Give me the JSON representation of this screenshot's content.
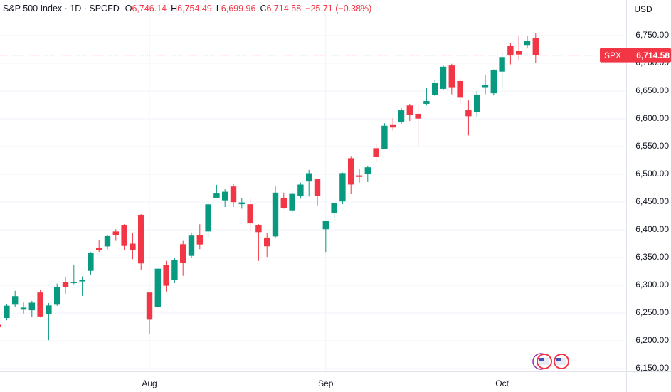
{
  "chart_data": {
    "type": "candlestick",
    "header": {
      "symbol": "S&P 500 Index · 1D · SPCFD",
      "ohlc": [
        {
          "label": "O",
          "value": "6,746.14"
        },
        {
          "label": "H",
          "value": "6,754.49"
        },
        {
          "label": "L",
          "value": "6,699.96"
        },
        {
          "label": "C",
          "value": "6,714.58"
        }
      ],
      "change": "−25.71 (−0.38%)"
    },
    "currency": "USD",
    "price_tag": {
      "symbol": "SPX",
      "label": "6,714.58"
    },
    "categories": [
      null,
      null,
      null,
      null,
      null,
      null,
      null,
      null,
      null,
      null,
      null,
      null,
      null,
      null,
      null,
      null,
      null,
      null,
      "Aug",
      null,
      null,
      null,
      null,
      null,
      null,
      null,
      null,
      null,
      null,
      null,
      null,
      null,
      null,
      null,
      null,
      null,
      null,
      null,
      null,
      "Sep",
      null,
      null,
      null,
      null,
      null,
      null,
      null,
      null,
      null,
      null,
      null,
      null,
      null,
      null,
      null,
      null,
      null,
      null,
      null,
      null,
      "Oct",
      null,
      null,
      null,
      null
    ],
    "series": {
      "up_color": "#089981",
      "down_color": "#f23645",
      "open": [
        6229,
        6241,
        6265,
        6256,
        6255,
        6287,
        6248,
        6265,
        6306,
        6304,
        6307,
        6326,
        6368,
        6370,
        6397,
        6409,
        6375,
        6427,
        6287,
        6261,
        6337,
        6309,
        6374,
        6353,
        6391,
        6397,
        6457,
        6453,
        6478,
        6446,
        6446,
        6409,
        6386,
        6388,
        6457,
        6435,
        6461,
        6487,
        6491,
        6401,
        6430,
        6451,
        6529,
        6498,
        6500,
        6547,
        6546,
        6590,
        6594,
        6624,
        6609,
        6627,
        6643,
        6654,
        6696,
        6668,
        6616,
        6612,
        6657,
        6646,
        6685,
        6731,
        6722,
        6733,
        6746.14
      ],
      "high": [
        6242,
        6266,
        6290,
        6269,
        6272,
        6292,
        6268,
        6303,
        6315,
        6336,
        6316,
        6360,
        6382,
        6390,
        6401,
        6410,
        6394,
        6428,
        6288,
        6330,
        6344,
        6349,
        6380,
        6395,
        6410,
        6447,
        6481,
        6473,
        6482,
        6457,
        6456,
        6410,
        6394,
        6478,
        6467,
        6469,
        6485,
        6508,
        6492,
        6416,
        6449,
        6503,
        6533,
        6509,
        6515,
        6554,
        6592,
        6601,
        6619,
        6627,
        6624,
        6656,
        6671,
        6697,
        6699,
        6673,
        6633,
        6650,
        6679,
        6689,
        6718,
        6736,
        6750,
        6749,
        6754.49
      ],
      "low": [
        6217,
        6237,
        6261,
        6249,
        6243,
        6242,
        6201,
        6263,
        6285,
        6302,
        6281,
        6318,
        6360,
        6365,
        6380,
        6364,
        6347,
        6327,
        6212,
        6260,
        6289,
        6304,
        6317,
        6350,
        6365,
        6385,
        6457,
        6441,
        6441,
        6438,
        6397,
        6344,
        6351,
        6385,
        6438,
        6430,
        6456,
        6460,
        6444,
        6360,
        6417,
        6446,
        6465,
        6485,
        6486,
        6522,
        6545,
        6579,
        6591,
        6596,
        6551,
        6624,
        6641,
        6652,
        6644,
        6627,
        6570,
        6603,
        6644,
        6642,
        6656,
        6698,
        6705,
        6727,
        6699.96
      ],
      "close": [
        6225.5,
        6263.3,
        6280.5,
        6259.8,
        6268.6,
        6243.8,
        6263.7,
        6297.4,
        6296.8,
        6305.6,
        6309.6,
        6358.9,
        6363.4,
        6388.6,
        6389.8,
        6370.9,
        6362.9,
        6339.4,
        6238.0,
        6329.9,
        6299.2,
        6345.1,
        6340.0,
        6389.5,
        6373.5,
        6445.8,
        6466.6,
        6468.5,
        6449.8,
        6449.2,
        6411.4,
        6395.8,
        6370.2,
        6466.9,
        6439.3,
        6465.9,
        6481.4,
        6501.9,
        6460.3,
        6415.5,
        6448.3,
        6502.1,
        6481.5,
        6495.2,
        6512.6,
        6532.0,
        6587.5,
        6584.3,
        6615.3,
        6606.8,
        6600.4,
        6632.0,
        6664.4,
        6693.8,
        6656.9,
        6638.0,
        6604.7,
        6643.7,
        6661.2,
        6688.5,
        6711.2,
        6715.4,
        6715.8,
        6740.3,
        6714.58
      ]
    },
    "ylim": [
      6144.9,
      6814.1
    ],
    "yticks": [
      {
        "value": 6150,
        "label": "6,150.00"
      },
      {
        "value": 6200,
        "label": "6,200.00"
      },
      {
        "value": 6250,
        "label": "6,250.00"
      },
      {
        "value": 6300,
        "label": "6,300.00"
      },
      {
        "value": 6350,
        "label": "6,350.00"
      },
      {
        "value": 6400,
        "label": "6,400.00"
      },
      {
        "value": 6450,
        "label": "6,450.00"
      },
      {
        "value": 6500,
        "label": "6,500.00"
      },
      {
        "value": 6550,
        "label": "6,550.00"
      },
      {
        "value": 6600,
        "label": "6,600.00"
      },
      {
        "value": 6650,
        "label": "6,650.00"
      },
      {
        "value": 6700,
        "label": "6,700.00"
      },
      {
        "value": 6750,
        "label": "6,750.00"
      }
    ],
    "grid": true
  }
}
